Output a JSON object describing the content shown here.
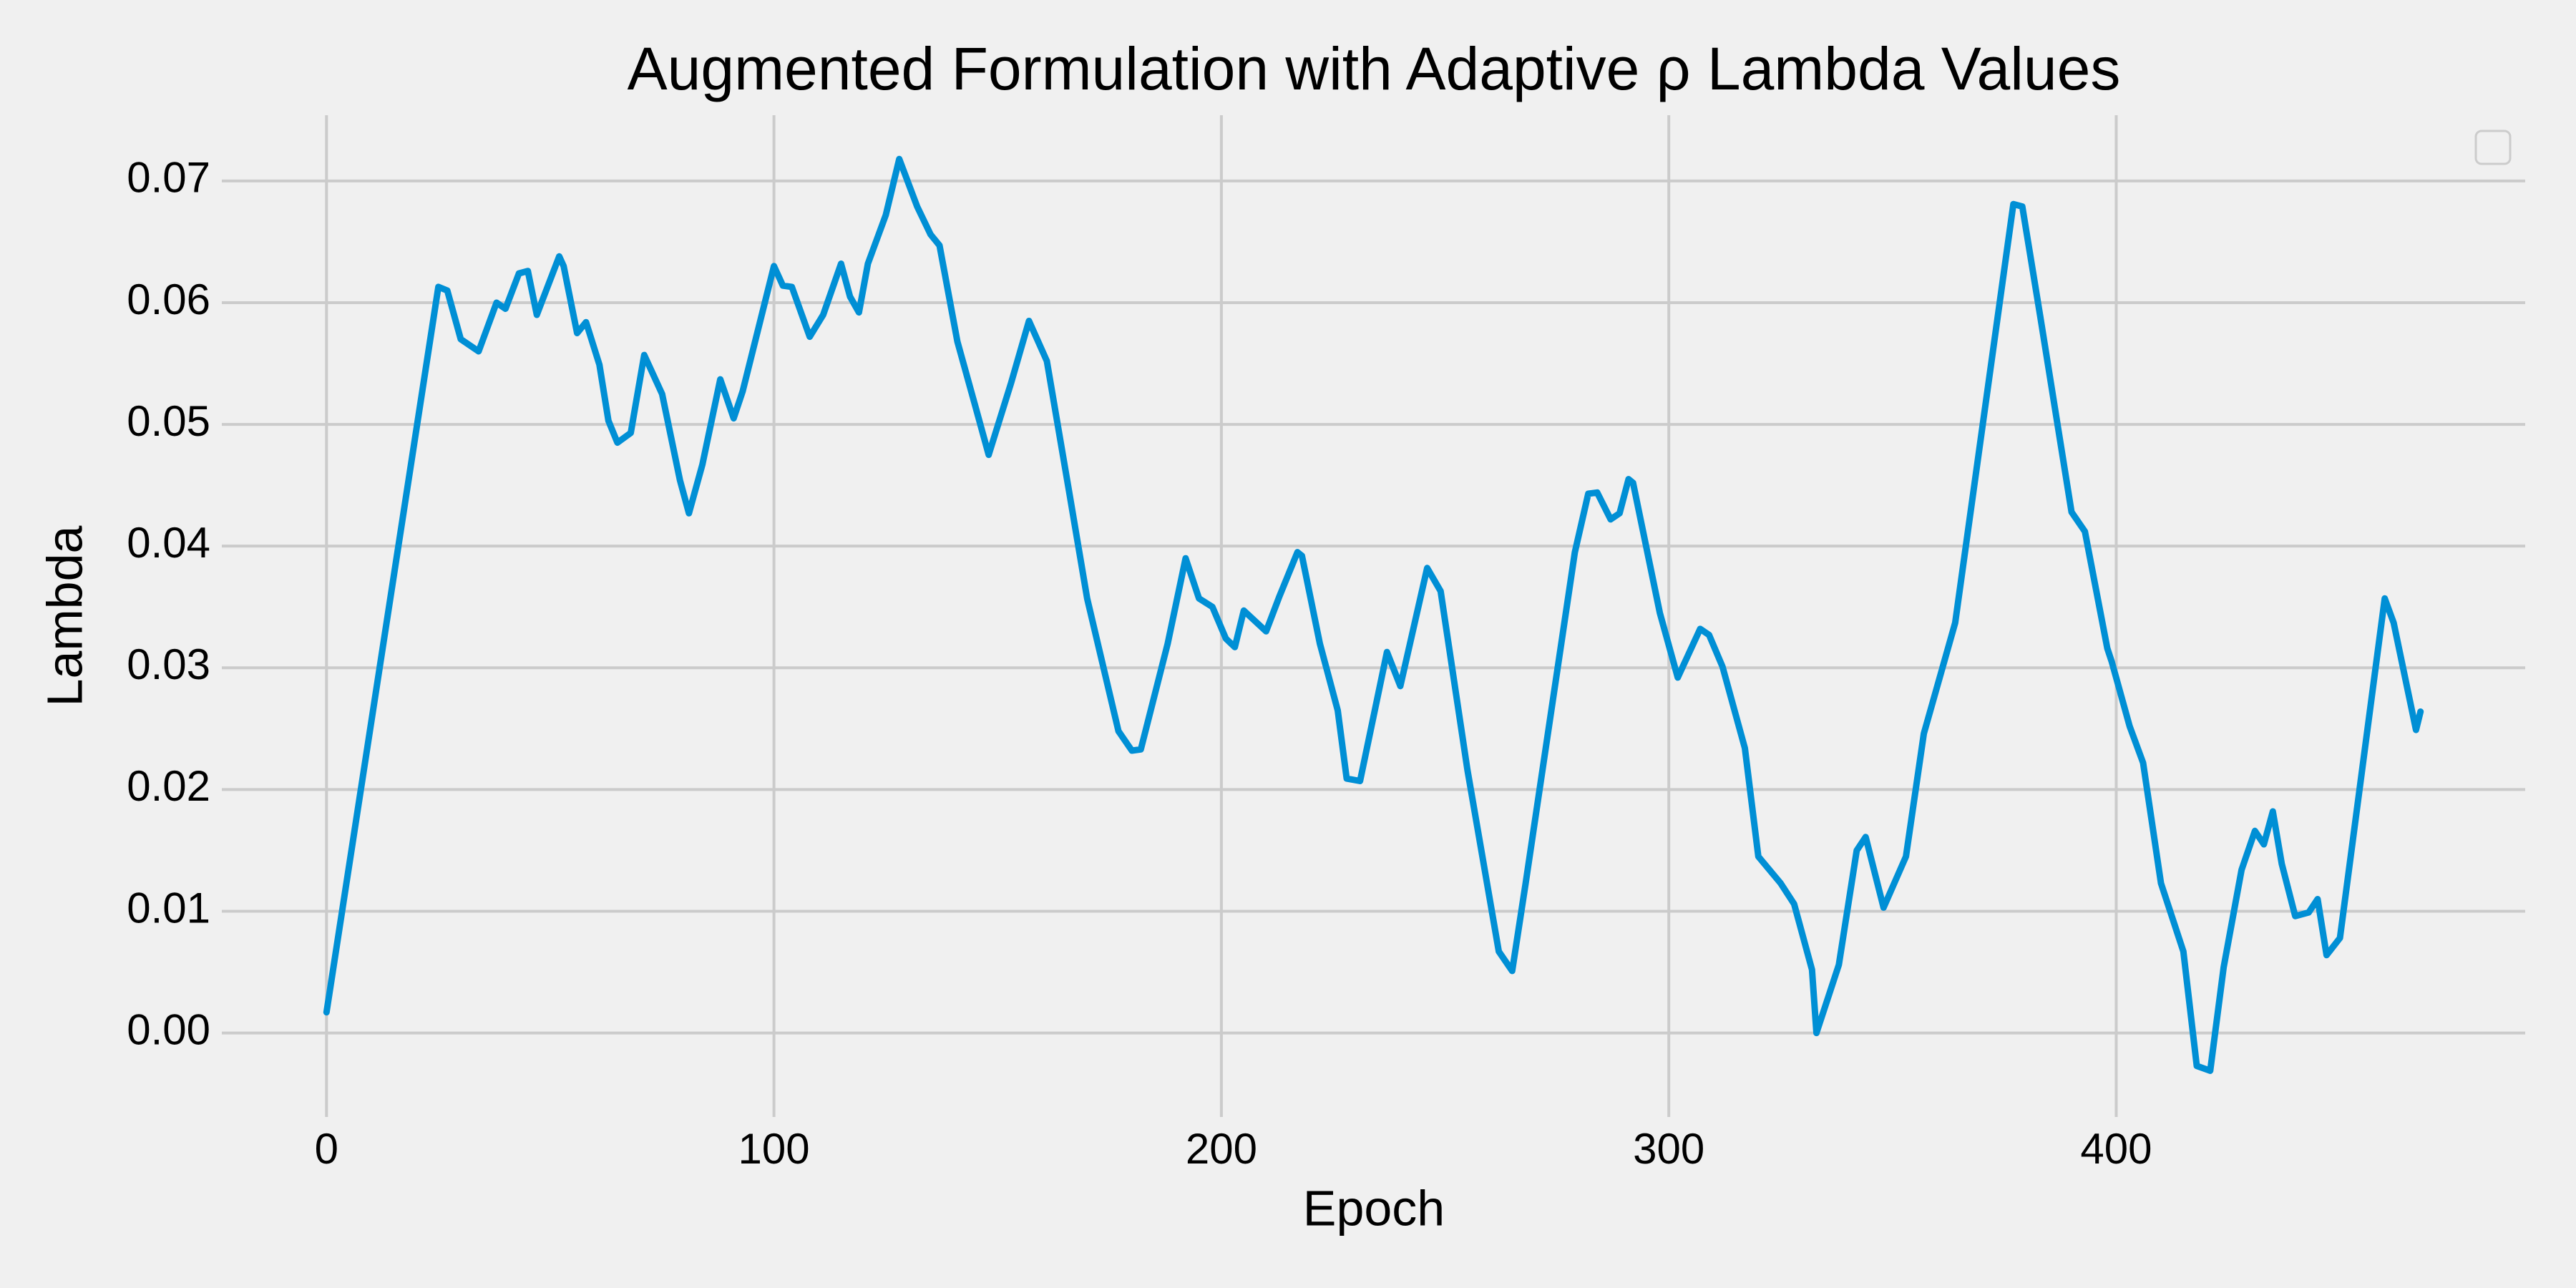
{
  "chart_data": {
    "type": "line",
    "title": "Augmented Formulation with Adaptive ρ Lambda Values",
    "x_label": "Epoch",
    "y_label": "Lambda",
    "x": [
      0,
      25,
      27,
      30,
      34,
      38,
      40,
      43,
      45,
      47,
      52,
      53,
      56,
      58,
      61,
      63,
      65,
      68,
      71,
      75,
      79,
      81,
      84,
      88,
      91,
      93,
      100,
      102,
      104,
      108,
      111,
      115,
      117,
      119,
      121,
      125,
      128,
      132,
      135,
      137,
      141,
      145,
      148,
      153,
      157,
      161,
      166,
      170,
      177,
      180,
      182,
      188,
      192,
      195,
      198,
      201,
      203,
      205,
      210,
      213,
      217,
      218,
      222,
      226,
      228,
      231,
      237,
      240,
      246,
      249,
      255,
      262,
      265,
      268,
      279,
      282,
      284,
      287,
      289,
      291,
      292,
      298,
      302,
      307,
      309,
      312,
      317,
      320,
      325,
      328,
      332,
      333,
      338,
      342,
      344,
      348,
      353,
      357,
      364,
      377,
      379,
      383,
      390,
      393,
      398,
      399,
      403,
      406,
      410,
      415,
      418,
      421,
      424,
      428,
      431,
      433,
      435,
      437,
      440,
      443,
      445,
      447,
      450,
      460,
      462,
      467,
      468
    ],
    "series": [
      {
        "color": "#008fd5",
        "values": [
          0.0017,
          0.0613,
          0.061,
          0.057,
          0.056,
          0.06,
          0.0595,
          0.0624,
          0.0626,
          0.059,
          0.0638,
          0.063,
          0.0575,
          0.0584,
          0.0549,
          0.0503,
          0.0485,
          0.0493,
          0.0557,
          0.0525,
          0.0454,
          0.0427,
          0.0467,
          0.0537,
          0.0505,
          0.0527,
          0.063,
          0.0614,
          0.0613,
          0.0572,
          0.059,
          0.0632,
          0.0605,
          0.0592,
          0.0632,
          0.0672,
          0.0718,
          0.0679,
          0.0656,
          0.0647,
          0.0568,
          0.0515,
          0.0475,
          0.0534,
          0.0585,
          0.0552,
          0.0444,
          0.0357,
          0.0248,
          0.0232,
          0.0233,
          0.032,
          0.039,
          0.0357,
          0.035,
          0.0324,
          0.0317,
          0.0347,
          0.033,
          0.0359,
          0.0395,
          0.0392,
          0.032,
          0.0265,
          0.0209,
          0.0207,
          0.0313,
          0.0285,
          0.0382,
          0.0363,
          0.0216,
          0.0067,
          0.0051,
          0.0123,
          0.0395,
          0.0443,
          0.0444,
          0.0422,
          0.0427,
          0.0455,
          0.0452,
          0.0345,
          0.0292,
          0.0332,
          0.0327,
          0.0301,
          0.0234,
          0.0145,
          0.0123,
          0.0106,
          0.0052,
          0,
          0.0056,
          0.015,
          0.0161,
          0.0103,
          0.0145,
          0.0246,
          0.0337,
          0.0681,
          0.0679,
          0.0589,
          0.0428,
          0.0412,
          0.0316,
          0.0305,
          0.0252,
          0.0222,
          0.0123,
          0.0067,
          -0.0027,
          -0.0031,
          0.0054,
          0.0134,
          0.0166,
          0.0155,
          0.0182,
          0.0139,
          0.0096,
          0.0099,
          0.011,
          0.0064,
          0.0078,
          0.0357,
          0.0337,
          0.0249,
          0.0264
        ]
      }
    ],
    "xlim": [
      -23.4,
      491.4
    ],
    "ylim": [
      -0.0069,
      0.0754
    ],
    "xticks": [
      0,
      100,
      200,
      300,
      400
    ],
    "yticks": [
      {
        "value": 0,
        "label": "0.00"
      },
      {
        "value": 0.01,
        "label": "0.01"
      },
      {
        "value": 0.02,
        "label": "0.02"
      },
      {
        "value": 0.03,
        "label": "0.03"
      },
      {
        "value": 0.04,
        "label": "0.04"
      },
      {
        "value": 0.05,
        "label": "0.05"
      },
      {
        "value": 0.06,
        "label": "0.06"
      },
      {
        "value": 0.07,
        "label": "0.07"
      }
    ],
    "grid": true
  }
}
